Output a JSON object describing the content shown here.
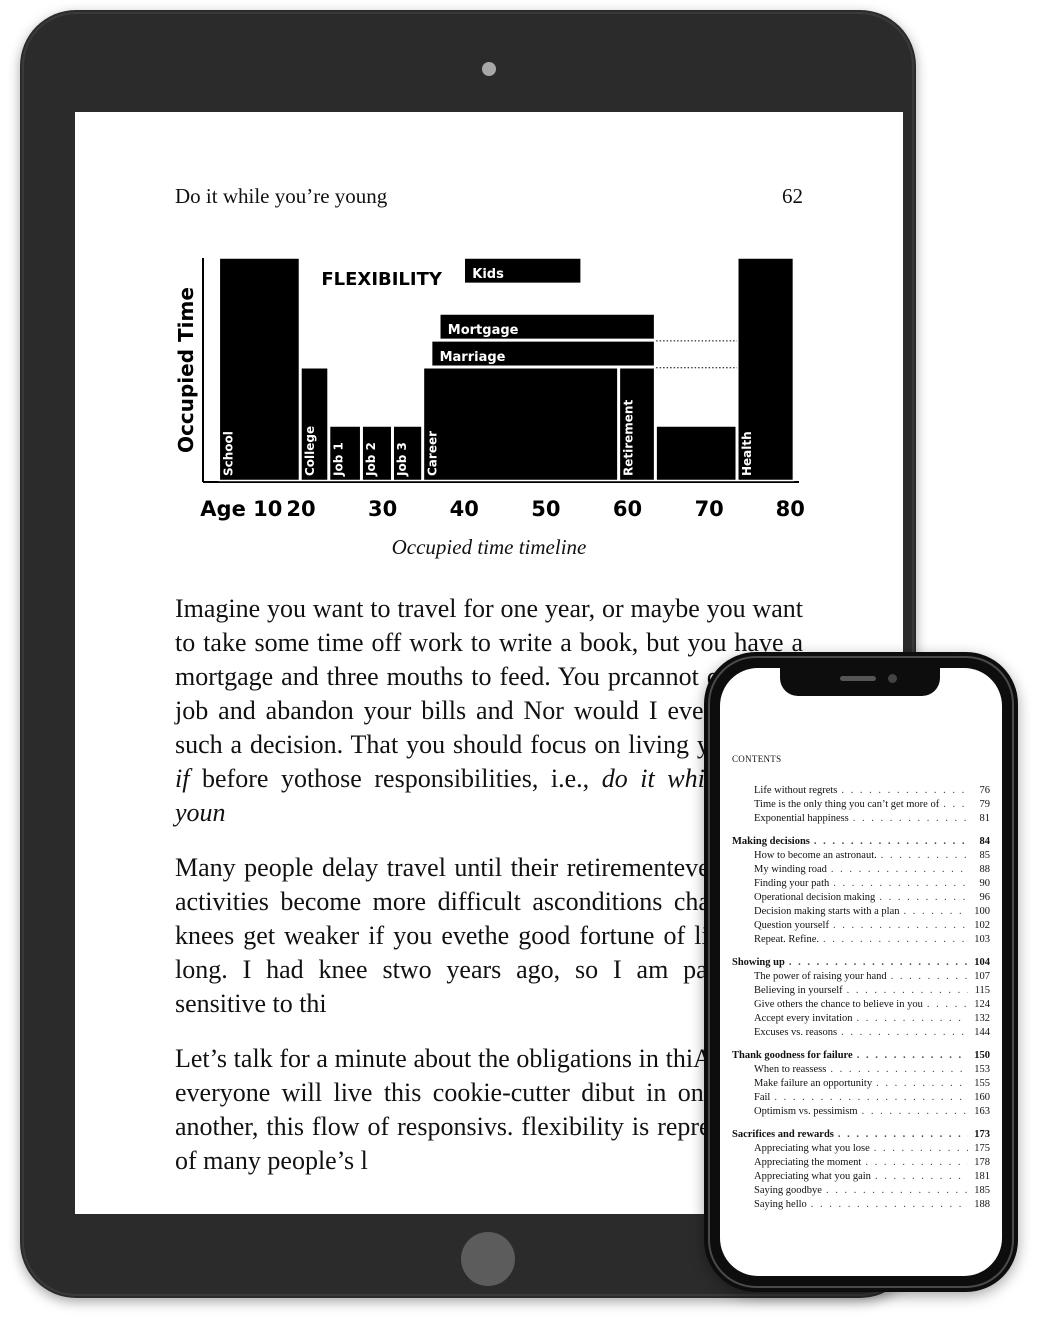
{
  "book": {
    "running_title": "Do it while you’re young",
    "page_number": "62",
    "figure_caption": "Occupied time timeline",
    "paragraphs": [
      [
        "Imagine you want to travel for one year, or maybe you want to take some time off work to write a book, but you have a mortgage and three mouths to feed. You pr",
        "cannot quit your job and abandon your bills and ",
        "Nor would I ever endorse such a decision. That ",
        "you should focus on living your ",
        {
          "i": "what if"
        },
        " before yo",
        "those responsibilities, i.e., ",
        {
          "i": "do it while you’re youn"
        }
      ],
      [
        "Many people delay travel until their retirement",
        "ever, certain activities become more difficult as",
        "conditions change, and knees get weaker if you eve",
        "the good fortune of living that long. I had knee s",
        "two years ago, so I am particularly sensitive to thi"
      ],
      [
        "Let’s talk for a minute about the obligations in thi",
        "Again, not everyone will live this cookie-cutter di",
        "but in one way or another, this flow of responsi",
        "vs. flexibility is representative of many people’s l"
      ]
    ]
  },
  "chart_data": {
    "type": "bar",
    "ylabel": "Occupied Time",
    "annotation": "FLEXIBILITY",
    "x_ticks": [
      "Age 10",
      "20",
      "30",
      "40",
      "50",
      "60",
      "70",
      "80"
    ],
    "x_tick_values": [
      10,
      20,
      30,
      40,
      50,
      60,
      70,
      80
    ],
    "xlim": [
      8,
      81
    ],
    "ylim": [
      0,
      100
    ],
    "fill_color": "#000000",
    "segments": [
      {
        "label": "School",
        "x0": 10,
        "x1": 20,
        "y0": 0,
        "y1": 100,
        "label_vertical": true
      },
      {
        "label": "College",
        "x0": 20,
        "x1": 23.5,
        "y0": 0,
        "y1": 51,
        "label_vertical": true
      },
      {
        "label": "Job 1",
        "x0": 23.5,
        "x1": 27.5,
        "y0": 0,
        "y1": 25,
        "label_vertical": true
      },
      {
        "label": "Job 2",
        "x0": 27.5,
        "x1": 31.3,
        "y0": 0,
        "y1": 25,
        "label_vertical": true
      },
      {
        "label": "Job 3",
        "x0": 31.3,
        "x1": 35,
        "y0": 0,
        "y1": 25,
        "label_vertical": true
      },
      {
        "label": "Career",
        "x0": 35,
        "x1": 59,
        "y0": 0,
        "y1": 51,
        "label_vertical": true
      },
      {
        "label": "Retirement",
        "x0": 59,
        "x1": 63.5,
        "y0": 0,
        "y1": 51,
        "label_vertical": true
      },
      {
        "label": "",
        "x0": 63.5,
        "x1": 73.5,
        "y0": 0,
        "y1": 25,
        "label_vertical": false
      },
      {
        "label": "Health",
        "x0": 73.5,
        "x1": 80.5,
        "y0": 0,
        "y1": 100,
        "label_vertical": true
      },
      {
        "label": "Marriage",
        "x0": 36,
        "x1": 63.5,
        "y0": 51,
        "y1": 63,
        "label_vertical": false
      },
      {
        "label": "Mortgage",
        "x0": 37,
        "x1": 63.5,
        "y0": 75,
        "y1": 76,
        "label_vertical": false,
        "note": "band"
      },
      {
        "label": "Kids",
        "x0": 40,
        "x1": 54.5,
        "y0": 88,
        "y1": 100,
        "label_vertical": false
      }
    ],
    "dotted_lines": [
      {
        "x0": 63.5,
        "x1": 73.5,
        "y": 51
      },
      {
        "x0": 63.5,
        "x1": 73.5,
        "y": 63
      }
    ]
  },
  "toc": {
    "heading": "CONTENTS",
    "parts": [
      {
        "entries": [
          {
            "title": "Life without regrets",
            "page": "76",
            "level": "sub"
          },
          {
            "title": "Time is the only thing you can’t get more of",
            "page": "79",
            "level": "sub"
          },
          {
            "title": "Exponential happiness",
            "page": "81",
            "level": "sub"
          }
        ]
      },
      {
        "entries": [
          {
            "title": "Making decisions",
            "page": "84",
            "level": "sec"
          },
          {
            "title": "How to become an astronaut.",
            "page": "85",
            "level": "sub"
          },
          {
            "title": "My winding road",
            "page": "88",
            "level": "sub"
          },
          {
            "title": "Finding your path",
            "page": "90",
            "level": "sub"
          },
          {
            "title": "Operational decision making",
            "page": "96",
            "level": "sub"
          },
          {
            "title": "Decision making starts with a plan",
            "page": "100",
            "level": "sub"
          },
          {
            "title": "Question yourself",
            "page": "102",
            "level": "sub"
          },
          {
            "title": "Repeat. Refine.",
            "page": "103",
            "level": "sub"
          }
        ]
      },
      {
        "entries": [
          {
            "title": "Showing up",
            "page": "104",
            "level": "sec"
          },
          {
            "title": "The power of raising your hand",
            "page": "107",
            "level": "sub"
          },
          {
            "title": "Believing in yourself",
            "page": "115",
            "level": "sub"
          },
          {
            "title": "Give others the chance to believe in you",
            "page": "124",
            "level": "sub"
          },
          {
            "title": "Accept every invitation",
            "page": "132",
            "level": "sub"
          },
          {
            "title": "Excuses vs. reasons",
            "page": "144",
            "level": "sub"
          }
        ]
      },
      {
        "entries": [
          {
            "title": "Thank goodness for failure",
            "page": "150",
            "level": "sec"
          },
          {
            "title": "When to reassess",
            "page": "153",
            "level": "sub"
          },
          {
            "title": "Make failure an opportunity",
            "page": "155",
            "level": "sub"
          },
          {
            "title": "Fail",
            "page": "160",
            "level": "sub"
          },
          {
            "title": "Optimism vs. pessimism",
            "page": "163",
            "level": "sub"
          }
        ]
      },
      {
        "entries": [
          {
            "title": "Sacrifices and rewards",
            "page": "173",
            "level": "sec"
          },
          {
            "title": "Appreciating what you lose",
            "page": "175",
            "level": "sub"
          },
          {
            "title": "Appreciating the moment",
            "page": "178",
            "level": "sub"
          },
          {
            "title": "Appreciating what you gain",
            "page": "181",
            "level": "sub"
          },
          {
            "title": "Saying goodbye",
            "page": "185",
            "level": "sub"
          },
          {
            "title": "Saying hello",
            "page": "188",
            "level": "sub"
          }
        ]
      }
    ]
  }
}
